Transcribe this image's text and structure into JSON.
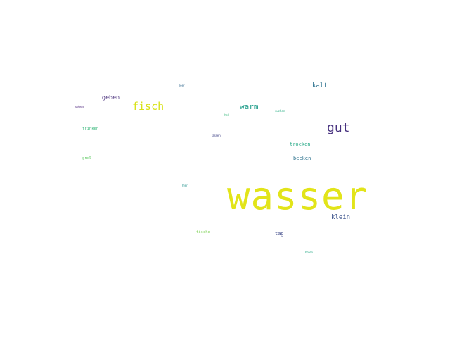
{
  "words": {
    "wasser": {
      "text": "wasser",
      "color": "#e2e419"
    },
    "gut": {
      "text": "gut",
      "color": "#46307e"
    },
    "fisch": {
      "text": "fisch",
      "color": "#d8e219"
    },
    "warm": {
      "text": "warm",
      "color": "#1e9c89"
    },
    "kalt": {
      "text": "kalt",
      "color": "#2c728e"
    },
    "klein": {
      "text": "klein",
      "color": "#3b528b"
    },
    "geben": {
      "text": "geben",
      "color": "#472d7b"
    },
    "trocken": {
      "text": "trocken",
      "color": "#22a884"
    },
    "becken": {
      "text": "becken",
      "color": "#2c728e"
    },
    "tag": {
      "text": "tag",
      "color": "#3e4989"
    },
    "trinken": {
      "text": "trinken",
      "color": "#35b779"
    },
    "gross": {
      "text": "groß",
      "color": "#5ec962"
    },
    "tische": {
      "text": "tische",
      "color": "#7ad151"
    },
    "sehen": {
      "text": "sehen",
      "color": "#3b0f70"
    },
    "leer": {
      "text": "leer",
      "color": "#31688e"
    },
    "hell": {
      "text": "hell",
      "color": "#35b779"
    },
    "suchen": {
      "text": "suchen",
      "color": "#25ac82"
    },
    "lassen": {
      "text": "lassen",
      "color": "#414487"
    },
    "hier": {
      "text": "hier",
      "color": "#21918c"
    },
    "holen": {
      "text": "holen",
      "color": "#22a884"
    }
  }
}
